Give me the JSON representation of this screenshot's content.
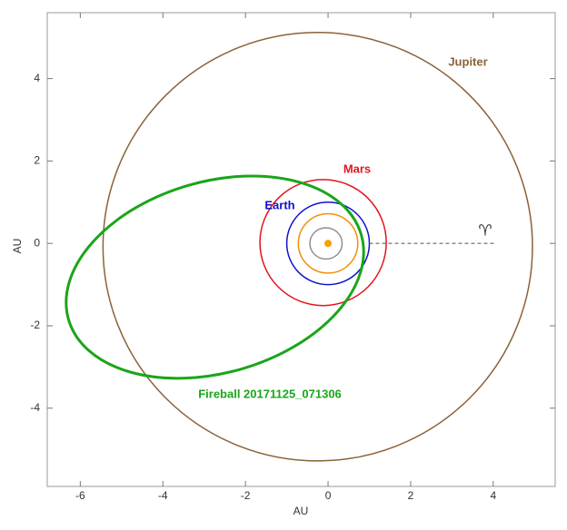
{
  "chart_data": {
    "type": "orbits",
    "xlabel": "AU",
    "ylabel": "AU",
    "xlim": [
      -6.8,
      5.5
    ],
    "ylim": [
      -5.9,
      5.6
    ],
    "xticks": [
      -6,
      -4,
      -2,
      0,
      2,
      4
    ],
    "yticks": [
      -4,
      -2,
      0,
      2,
      4
    ],
    "series": [
      {
        "name": "Jupiter",
        "color": "#8b6239",
        "cx": -0.25,
        "cy": -0.08,
        "rx": 5.2,
        "ry": 5.2,
        "angle": 0,
        "line_width": 1.5
      },
      {
        "name": "Mars",
        "color": "#e3141b",
        "cx": -0.12,
        "cy": 0.02,
        "rx": 1.53,
        "ry": 1.53,
        "angle": 0,
        "line_width": 1.5
      },
      {
        "name": "Earth",
        "color": "#1010d0",
        "cx": 0,
        "cy": 0,
        "rx": 1.0,
        "ry": 1.0,
        "angle": 0,
        "line_width": 1.5
      },
      {
        "color": "#f0900a",
        "cx": 0,
        "cy": 0,
        "rx": 0.72,
        "ry": 0.72,
        "angle": 0,
        "line_width": 1.5
      },
      {
        "color": "#909090",
        "cx": -0.05,
        "cy": 0,
        "rx": 0.39,
        "ry": 0.38,
        "angle": 0,
        "line_width": 1.5
      },
      {
        "name": "Fireball 20171125_071306",
        "color": "#1aa51a",
        "cx": -2.74,
        "cy": -0.82,
        "rx": 3.69,
        "ry": 2.32,
        "angle": 16.2,
        "line_width": 3
      }
    ],
    "sun": {
      "x": 0,
      "y": 0,
      "color": "#f5a000"
    },
    "vernal_equinox_symbol": "♈"
  }
}
